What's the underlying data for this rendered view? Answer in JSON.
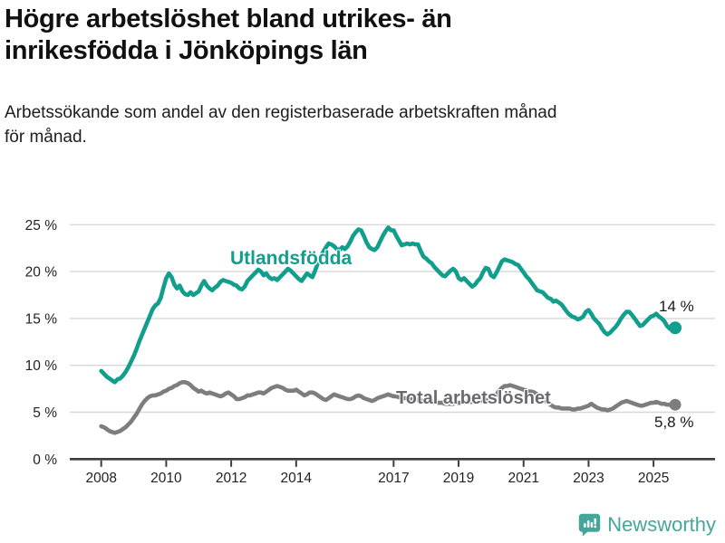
{
  "header": {
    "title_line1": "Högre arbetslöshet bland utrikes- än",
    "title_line2": "inrikesfödda i Jönköpings län",
    "subtitle_line1": "Arbetssökande som andel av den registerbaserade arbetskraften månad",
    "subtitle_line2": "för månad."
  },
  "footer": {
    "brand": "Newsworthy"
  },
  "colors": {
    "teal": "#119e8d",
    "gray": "#7d7d7d",
    "gray_label": "#6a6a6e",
    "grid": "#d8d8d8",
    "axis": "#3c3c3c",
    "axis_text": "#222222",
    "end_label_text": "#1a1a1a",
    "brand_teal": "#46a59a"
  },
  "chart_data": {
    "type": "line",
    "title": "Högre arbetslöshet bland utrikes- än inrikesfödda i Jönköpings län",
    "subtitle": "Arbetssökande som andel av den registerbaserade arbetskraften månad för månad.",
    "unit": "%",
    "grid": true,
    "legend": "inline-series-labels-with-end-value-annotations",
    "x_axis": {
      "range": [
        2008,
        2025.67
      ],
      "ticks": [
        {
          "value": 2008,
          "label": "2008"
        },
        {
          "value": 2010,
          "label": "2010"
        },
        {
          "value": 2012,
          "label": "2012"
        },
        {
          "value": 2014,
          "label": "2014"
        },
        {
          "value": 2017,
          "label": "2017"
        },
        {
          "value": 2019,
          "label": "2019"
        },
        {
          "value": 2021,
          "label": "2021"
        },
        {
          "value": 2023,
          "label": "2023"
        },
        {
          "value": 2025,
          "label": "2025"
        }
      ]
    },
    "y_axis": {
      "range": [
        0,
        25
      ],
      "ticks": [
        {
          "value": 0,
          "label": "0 %"
        },
        {
          "value": 5,
          "label": "5 %"
        },
        {
          "value": 10,
          "label": "10 %"
        },
        {
          "value": 15,
          "label": "15 %"
        },
        {
          "value": 20,
          "label": "20 %"
        },
        {
          "value": 25,
          "label": "25 %"
        }
      ]
    },
    "series": [
      {
        "id": "utlandsfodda",
        "name": "Utlandsfödda",
        "color": "#119e8d",
        "end_label": "14 %",
        "end_value": 14,
        "start_year": 2008,
        "step_months": 1,
        "values": [
          9.4,
          9.1,
          8.8,
          8.6,
          8.4,
          8.2,
          8.5,
          8.6,
          8.9,
          9.3,
          9.8,
          10.4,
          11.0,
          11.7,
          12.5,
          13.2,
          13.9,
          14.6,
          15.3,
          16.0,
          16.4,
          16.6,
          17.2,
          18.3,
          19.3,
          19.8,
          19.4,
          18.6,
          18.2,
          18.5,
          17.9,
          17.6,
          17.5,
          17.8,
          17.5,
          17.7,
          17.9,
          18.5,
          19.0,
          18.5,
          18.2,
          18.0,
          18.3,
          18.5,
          18.9,
          19.1,
          19.0,
          18.9,
          18.8,
          18.6,
          18.5,
          18.2,
          18.1,
          18.4,
          19.0,
          19.3,
          19.6,
          19.9,
          20.2,
          20.0,
          19.6,
          19.8,
          19.4,
          19.2,
          19.3,
          19.1,
          19.4,
          19.7,
          20.0,
          20.3,
          20.1,
          19.8,
          19.5,
          19.2,
          19.0,
          19.4,
          19.8,
          19.6,
          19.4,
          20.1,
          20.9,
          21.6,
          22.1,
          22.6,
          23.0,
          22.9,
          22.7,
          22.4,
          22.3,
          22.6,
          22.4,
          22.7,
          23.2,
          23.8,
          24.2,
          24.5,
          24.4,
          23.8,
          23.1,
          22.6,
          22.4,
          22.3,
          22.6,
          23.2,
          23.8,
          24.3,
          24.7,
          24.4,
          24.4,
          23.8,
          23.3,
          22.8,
          22.9,
          23.0,
          22.9,
          23.0,
          22.9,
          22.9,
          22.2,
          21.6,
          21.4,
          21.1,
          20.9,
          20.5,
          20.2,
          19.9,
          19.6,
          19.5,
          19.8,
          20.1,
          20.3,
          20.0,
          19.3,
          19.1,
          19.3,
          19.0,
          18.7,
          18.4,
          18.6,
          19.0,
          19.3,
          19.9,
          20.4,
          20.3,
          19.6,
          19.4,
          19.9,
          20.5,
          21.1,
          21.3,
          21.2,
          21.1,
          21.0,
          20.8,
          20.7,
          20.3,
          19.9,
          19.5,
          19.2,
          18.8,
          18.4,
          18.0,
          17.9,
          17.8,
          17.5,
          17.2,
          17.1,
          16.8,
          16.9,
          16.7,
          16.5,
          16.1,
          15.7,
          15.4,
          15.2,
          15.1,
          14.9,
          15.0,
          15.2,
          15.7,
          15.9,
          15.5,
          15.0,
          14.7,
          14.4,
          13.9,
          13.5,
          13.3,
          13.5,
          13.8,
          14.1,
          14.5,
          15.0,
          15.4,
          15.7,
          15.7,
          15.4,
          15.0,
          14.6,
          14.2,
          14.3,
          14.6,
          14.9,
          15.2,
          15.3,
          15.5,
          15.2,
          15.0,
          14.7,
          14.2,
          13.9,
          14.0,
          14.0
        ]
      },
      {
        "id": "total-arbetsloshet",
        "name": "Total arbetslöshet",
        "color": "#7d7d7d",
        "end_label": "5,8 %",
        "end_value": 5.8,
        "start_year": 2008,
        "step_months": 1,
        "values": [
          3.5,
          3.4,
          3.2,
          3.0,
          2.9,
          2.8,
          2.9,
          3.0,
          3.2,
          3.4,
          3.7,
          4.0,
          4.4,
          4.8,
          5.3,
          5.8,
          6.2,
          6.5,
          6.7,
          6.8,
          6.8,
          6.9,
          7.0,
          7.2,
          7.3,
          7.5,
          7.6,
          7.8,
          7.9,
          8.1,
          8.2,
          8.2,
          8.1,
          7.9,
          7.6,
          7.4,
          7.2,
          7.3,
          7.1,
          7.0,
          7.1,
          7.0,
          6.9,
          6.8,
          6.7,
          6.8,
          7.0,
          7.1,
          6.9,
          6.7,
          6.4,
          6.4,
          6.5,
          6.6,
          6.8,
          6.8,
          6.9,
          7.0,
          7.1,
          7.1,
          7.0,
          7.2,
          7.4,
          7.6,
          7.7,
          7.8,
          7.7,
          7.6,
          7.4,
          7.3,
          7.3,
          7.3,
          7.4,
          7.2,
          7.0,
          6.8,
          6.9,
          7.1,
          7.1,
          7.0,
          6.8,
          6.6,
          6.4,
          6.3,
          6.5,
          6.7,
          6.9,
          6.8,
          6.7,
          6.6,
          6.5,
          6.4,
          6.4,
          6.5,
          6.7,
          6.8,
          6.7,
          6.5,
          6.4,
          6.3,
          6.2,
          6.3,
          6.5,
          6.6,
          6.7,
          6.8,
          6.9,
          6.8,
          6.7,
          6.7,
          6.6,
          6.6,
          6.5,
          6.5,
          6.4,
          6.4,
          6.4,
          6.3,
          6.3,
          6.2,
          6.2,
          6.1,
          6.1,
          6.0,
          6.0,
          6.0,
          6.0,
          5.9,
          5.9,
          5.9,
          5.9,
          6.0,
          6.0,
          6.0,
          6.0,
          6.1,
          6.1,
          6.1,
          6.1,
          6.2,
          6.2,
          6.2,
          6.3,
          6.3,
          6.4,
          6.5,
          6.9,
          7.3,
          7.6,
          7.8,
          7.8,
          7.9,
          7.8,
          7.7,
          7.6,
          7.5,
          7.4,
          7.3,
          7.2,
          7.2,
          7.1,
          6.9,
          6.6,
          6.4,
          6.2,
          6.0,
          5.8,
          5.6,
          5.5,
          5.5,
          5.4,
          5.4,
          5.4,
          5.4,
          5.3,
          5.3,
          5.4,
          5.4,
          5.5,
          5.6,
          5.7,
          5.9,
          5.7,
          5.5,
          5.4,
          5.3,
          5.3,
          5.2,
          5.3,
          5.4,
          5.6,
          5.8,
          6.0,
          6.1,
          6.2,
          6.1,
          6.0,
          5.9,
          5.8,
          5.7,
          5.7,
          5.8,
          5.9,
          6.0,
          6.0,
          6.1,
          6.0,
          5.9,
          5.9,
          5.8,
          5.8,
          5.8,
          5.8
        ]
      }
    ]
  }
}
